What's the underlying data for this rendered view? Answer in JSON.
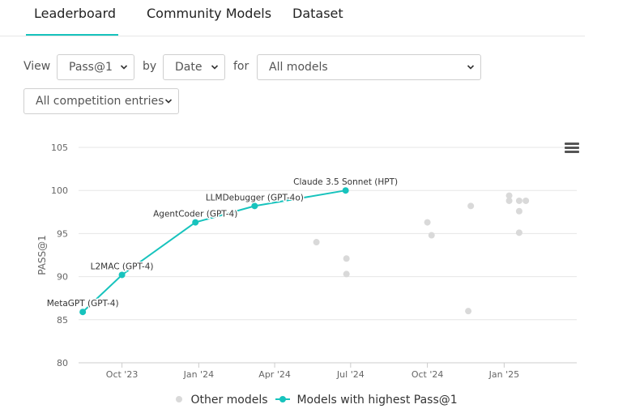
{
  "tabs": [
    {
      "label": "Leaderboard",
      "active": true
    },
    {
      "label": "Community Models",
      "active": false
    },
    {
      "label": "Dataset",
      "active": false
    }
  ],
  "controls": {
    "view_label": "View",
    "metric_value": "Pass@1",
    "by_label": "by",
    "group_value": "Date",
    "for_label": "for",
    "models_value": "All models",
    "entries_value": "All competition entries"
  },
  "colors": {
    "accent": "#17c3bd",
    "other_points": "#d9d9d9",
    "grid": "#e6e6e6"
  },
  "icons": {
    "menu": "hamburger-menu-icon",
    "dropdown": "chevron-down-icon"
  },
  "chart_data": {
    "type": "scatter",
    "ylabel": "PASS@1",
    "xlabel": "",
    "ylim": [
      80,
      105
    ],
    "y_ticks": [
      "80",
      "85",
      "90",
      "95",
      "100",
      "105"
    ],
    "xlim": [
      "2023-08-10",
      "2025-03-29"
    ],
    "x_ticks": [
      {
        "date": "2023-10-01",
        "label": "Oct '23"
      },
      {
        "date": "2024-01-01",
        "label": "Jan '24"
      },
      {
        "date": "2024-04-01",
        "label": "Apr '24"
      },
      {
        "date": "2024-07-01",
        "label": "Jul '24"
      },
      {
        "date": "2024-10-01",
        "label": "Oct '24"
      },
      {
        "date": "2025-01-01",
        "label": "Jan '25"
      }
    ],
    "legend": [
      "Other models",
      "Models with highest Pass@1"
    ],
    "legend_position": "bottom",
    "series": [
      {
        "name": "Models with highest Pass@1",
        "color": "#17c3bd",
        "points": [
          {
            "x": "2023-08-15",
            "y": 85.9,
            "label": "MetaGPT (GPT-4)"
          },
          {
            "x": "2023-10-01",
            "y": 90.2,
            "label": "L2MAC (GPT-4)"
          },
          {
            "x": "2023-12-28",
            "y": 96.3,
            "label": "AgentCoder (GPT-4)"
          },
          {
            "x": "2024-03-08",
            "y": 98.2,
            "label": "LLMDebugger (GPT-4o)"
          },
          {
            "x": "2024-06-25",
            "y": 100.0,
            "label": "Claude 3.5 Sonnet (HPT)"
          }
        ]
      },
      {
        "name": "Other models",
        "color": "#d9d9d9",
        "points": [
          {
            "x": "2024-05-21",
            "y": 94.0
          },
          {
            "x": "2024-06-26",
            "y": 92.1
          },
          {
            "x": "2024-06-26",
            "y": 90.3
          },
          {
            "x": "2024-10-01",
            "y": 96.3
          },
          {
            "x": "2024-10-06",
            "y": 94.8
          },
          {
            "x": "2024-11-19",
            "y": 86.0
          },
          {
            "x": "2024-11-22",
            "y": 98.2
          },
          {
            "x": "2025-01-07",
            "y": 99.4
          },
          {
            "x": "2025-01-07",
            "y": 98.8
          },
          {
            "x": "2025-01-19",
            "y": 98.8
          },
          {
            "x": "2025-01-19",
            "y": 97.6
          },
          {
            "x": "2025-01-19",
            "y": 95.1
          },
          {
            "x": "2025-01-27",
            "y": 98.8
          }
        ]
      }
    ]
  }
}
